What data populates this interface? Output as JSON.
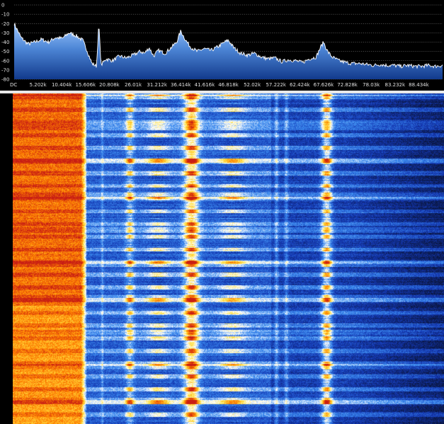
{
  "chart_data": {
    "type": "area",
    "title": "",
    "xlabel": "",
    "ylabel": "",
    "y_tick_labels": [
      "0",
      "-10",
      "-20",
      "-30",
      "-40",
      "-50",
      "-60",
      "-70",
      "-80"
    ],
    "ylim": [
      -80,
      0
    ],
    "x_tick_labels": [
      "DC",
      "5.202k",
      "10.404k",
      "15.606k",
      "20.808k",
      "26.01k",
      "31.212k",
      "36.414k",
      "41.616k",
      "46.818k",
      "52.02k",
      "57.222k",
      "62.424k",
      "67.626k",
      "72.828k",
      "78.03k",
      "83.232k",
      "88.434k"
    ],
    "x_tick_values": [
      0,
      5202,
      10404,
      15606,
      20808,
      26010,
      31212,
      36414,
      41616,
      46818,
      52020,
      57222,
      62424,
      67626,
      72828,
      78030,
      83232,
      88434
    ],
    "xlim": [
      0,
      93636
    ],
    "grid": true,
    "x": [
      0,
      1500,
      3000,
      4500,
      6000,
      7500,
      9000,
      10500,
      12000,
      13500,
      15000,
      16000,
      17000,
      18000,
      18500,
      19000,
      20000,
      21500,
      23000,
      24500,
      26000,
      27500,
      28500,
      29500,
      30500,
      31500,
      33000,
      34500,
      35500,
      36414,
      37500,
      38500,
      40000,
      41500,
      43000,
      44500,
      46000,
      46818,
      48000,
      49500,
      51000,
      52500,
      54000,
      55500,
      57000,
      58500,
      60000,
      61500,
      63000,
      64500,
      66000,
      67000,
      67626,
      68500,
      69500,
      71000,
      72500,
      74000,
      75500,
      77000,
      78500,
      80000,
      81500,
      83000,
      84500,
      86000,
      87500,
      89000,
      90500,
      92000,
      93636
    ],
    "series": [
      {
        "values": [
          -20,
          -35,
          -42,
          -40,
          -37,
          -40,
          -35,
          -36,
          -30,
          -33,
          -38,
          -50,
          -63,
          -66,
          -20,
          -65,
          -58,
          -60,
          -55,
          -57,
          -54,
          -50,
          -52,
          -46,
          -55,
          -49,
          -52,
          -45,
          -40,
          -28,
          -38,
          -45,
          -50,
          -47,
          -49,
          -45,
          -40,
          -38,
          -46,
          -52,
          -54,
          -52,
          -56,
          -58,
          -57,
          -61,
          -59,
          -60,
          -62,
          -58,
          -56,
          -45,
          -40,
          -50,
          -56,
          -60,
          -62,
          -63,
          -63,
          -64,
          -65,
          -64,
          -65,
          -65,
          -66,
          -65,
          -66,
          -66,
          -65,
          -66,
          -65
        ]
      }
    ]
  },
  "waterfall": {
    "colormap": [
      "#0a1640",
      "#1438b4",
      "#3c8cf0",
      "#ffffff",
      "#ffe040",
      "#ff8000",
      "#c81e14"
    ]
  }
}
